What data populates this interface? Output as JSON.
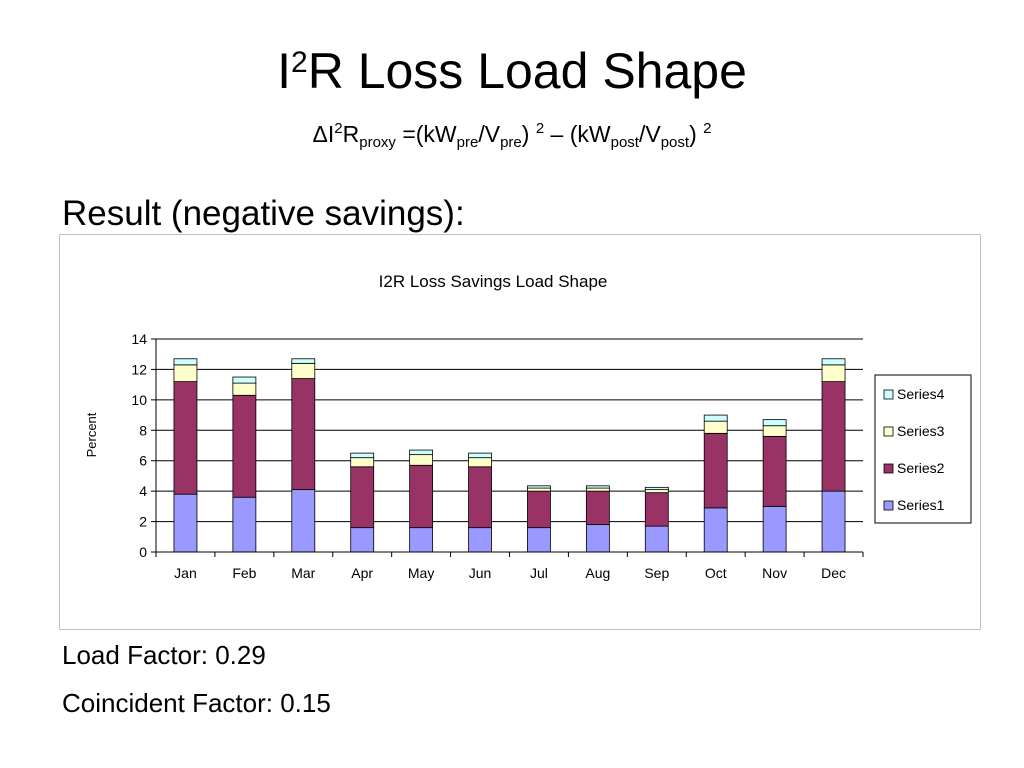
{
  "slide": {
    "title_base": "I",
    "title_sup": "2",
    "title_rest": "R Loss Load Shape",
    "formula": {
      "delta_i": "ΔI",
      "sup1": "2",
      "r": "R",
      "sub_proxy": "proxy",
      "eq_kw": " =(kW",
      "sub_pre1": "pre",
      "slash_v1": "/V",
      "sub_pre2": "pre",
      "close1": ") ",
      "sup2": "2",
      "dash_kw": " – (kW",
      "sub_post1": "post",
      "slash_v2": "/V",
      "sub_post2": "post",
      "close2": ") ",
      "sup3": "2"
    },
    "result_heading": "Result (negative savings):",
    "load_factor": "Load Factor: 0.29",
    "coincident_factor": "Coincident Factor: 0.15"
  },
  "colors": {
    "series1": "#9999ff",
    "series2": "#993366",
    "series3": "#ffffcc",
    "series4": "#ccffff",
    "grid": "#000000",
    "frame_border": "#bfbfbf"
  },
  "chart_data": {
    "type": "bar",
    "stacked": true,
    "title": "I2R Loss Savings Load Shape",
    "xlabel": "",
    "ylabel": "Percent",
    "ylim": [
      0,
      14
    ],
    "yticks": [
      0,
      2,
      4,
      6,
      8,
      10,
      12,
      14
    ],
    "grid": true,
    "legend_position": "right",
    "categories": [
      "Jan",
      "Feb",
      "Mar",
      "Apr",
      "May",
      "Jun",
      "Jul",
      "Aug",
      "Sep",
      "Oct",
      "Nov",
      "Dec"
    ],
    "series": [
      {
        "name": "Series1",
        "values": [
          3.8,
          3.6,
          4.1,
          1.6,
          1.6,
          1.6,
          1.6,
          1.8,
          1.7,
          2.9,
          3.0,
          4.0
        ]
      },
      {
        "name": "Series2",
        "values": [
          7.4,
          6.7,
          7.3,
          4.0,
          4.1,
          4.0,
          2.4,
          2.2,
          2.2,
          4.9,
          4.6,
          7.2
        ]
      },
      {
        "name": "Series3",
        "values": [
          1.1,
          0.8,
          1.0,
          0.6,
          0.7,
          0.6,
          0.2,
          0.2,
          0.2,
          0.8,
          0.7,
          1.1
        ]
      },
      {
        "name": "Series4",
        "values": [
          0.4,
          0.4,
          0.3,
          0.3,
          0.3,
          0.3,
          0.15,
          0.15,
          0.15,
          0.4,
          0.4,
          0.4
        ]
      }
    ]
  }
}
